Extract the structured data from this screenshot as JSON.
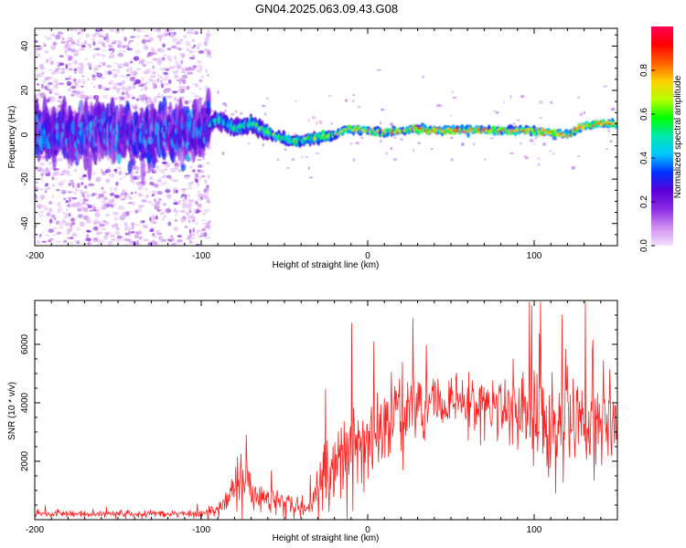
{
  "title": "GN04.2025.063.09.43.G08",
  "chart_data": [
    {
      "type": "heatmap",
      "xlabel": "Height of straight line (km)",
      "ylabel": "Frequency (Hz)",
      "xlim": [
        -200,
        150
      ],
      "ylim": [
        -50,
        48
      ],
      "xticks": [
        -200,
        -100,
        0,
        100
      ],
      "yticks": [
        -40,
        -20,
        0,
        20,
        40
      ],
      "colorbar": {
        "label": "Normalized spectral amplitude",
        "range": [
          0,
          1
        ],
        "ticks": [
          0.0,
          0.2,
          0.4,
          0.6,
          0.8
        ],
        "tick_labels": [
          "0.0",
          "0.2",
          "0.4",
          "0.6",
          "0.8"
        ],
        "colormap": "rainbow",
        "colors": [
          "#f0e0ff",
          "#d08ff0",
          "#8a2be2",
          "#5a00d8",
          "#0030ff",
          "#00c8ff",
          "#00e8b0",
          "#00ff00",
          "#b8ff00",
          "#ffd000",
          "#ff6000",
          "#ff0000",
          "#ff0055"
        ]
      },
      "ridge": {
        "x": [
          -200,
          -180,
          -160,
          -140,
          -120,
          -100,
          -90,
          -80,
          -70,
          -60,
          -50,
          -40,
          -30,
          -20,
          -10,
          0,
          10,
          20,
          30,
          40,
          50,
          60,
          70,
          80,
          90,
          100,
          110,
          120,
          130,
          140,
          150
        ],
        "y": [
          1,
          0,
          2,
          0,
          1,
          2,
          7,
          3,
          5,
          1,
          -2,
          -3,
          -1,
          0,
          3,
          2,
          1,
          2,
          3,
          2,
          2,
          2,
          2,
          2,
          2,
          2,
          1,
          0,
          4,
          5,
          5
        ]
      }
    },
    {
      "type": "line",
      "xlabel": "Height of straight line (km)",
      "ylabel": "SNR (10 * v/v)",
      "xlim": [
        -200,
        150
      ],
      "ylim": [
        0,
        7500
      ],
      "xticks": [
        -200,
        -100,
        0,
        100
      ],
      "yticks": [
        2000,
        4000,
        6000
      ],
      "color": "#ff2020",
      "envelope": {
        "x": [
          -200,
          -100,
          -90,
          -80,
          -75,
          -70,
          -60,
          -50,
          -40,
          -35,
          -30,
          -25,
          -20,
          -10,
          0,
          10,
          20,
          30,
          40,
          50,
          60,
          70,
          80,
          90,
          100,
          110,
          120,
          130,
          140,
          150
        ],
        "mean": [
          200,
          200,
          300,
          1200,
          1600,
          900,
          700,
          600,
          500,
          300,
          1200,
          1600,
          1900,
          2500,
          2800,
          3300,
          3700,
          3900,
          4000,
          4000,
          4000,
          3900,
          3900,
          3800,
          3300,
          3400,
          3400,
          3200,
          3300,
          3300
        ],
        "spread": [
          100,
          120,
          200,
          700,
          900,
          600,
          500,
          400,
          400,
          300,
          1000,
          1200,
          1300,
          1300,
          1300,
          1200,
          1200,
          1100,
          1000,
          1000,
          900,
          900,
          1000,
          1300,
          1800,
          1800,
          1700,
          1500,
          1400,
          1300
        ]
      }
    }
  ]
}
